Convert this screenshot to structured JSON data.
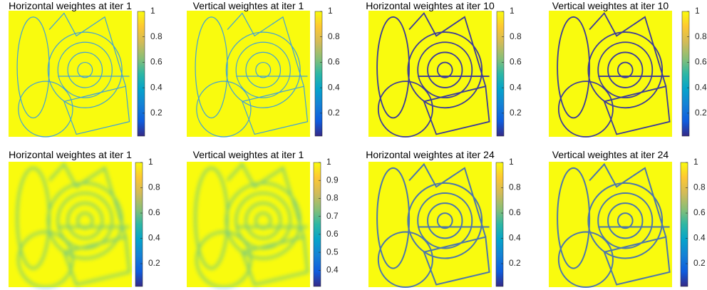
{
  "panels": [
    {
      "title": "Horizontal weightes at iter 1",
      "clim": [
        0.02,
        1
      ],
      "ticks": [
        0.2,
        0.4,
        0.6,
        0.8,
        1
      ]
    },
    {
      "title": "Vertical weightes at iter 1",
      "clim": [
        0.02,
        1
      ],
      "ticks": [
        0.2,
        0.4,
        0.6,
        0.8,
        1
      ]
    },
    {
      "title": "Horizontal weightes at iter 10",
      "clim": [
        0.02,
        1
      ],
      "ticks": [
        0.2,
        0.4,
        0.6,
        0.8,
        1
      ]
    },
    {
      "title": "Vertical weightes at iter 10",
      "clim": [
        0.02,
        1
      ],
      "ticks": [
        0.2,
        0.4,
        0.6,
        0.8,
        1
      ]
    },
    {
      "title": "Horizontal weightes at iter 1",
      "clim": [
        0.02,
        1
      ],
      "ticks": [
        0.2,
        0.4,
        0.6,
        0.8,
        1
      ]
    },
    {
      "title": "Vertical weightes at iter 1",
      "clim": [
        0.31,
        1
      ],
      "ticks": [
        0.4,
        0.5,
        0.6,
        0.7,
        0.8,
        0.9,
        1
      ]
    },
    {
      "title": "Horizontal weightes at iter 24",
      "clim": [
        0.02,
        1
      ],
      "ticks": [
        0.2,
        0.4,
        0.6,
        0.8,
        1
      ]
    },
    {
      "title": "Vertical weightes at iter 24",
      "clim": [
        0.02,
        1
      ],
      "ticks": [
        0.2,
        0.4,
        0.6,
        0.8,
        1
      ]
    }
  ]
}
